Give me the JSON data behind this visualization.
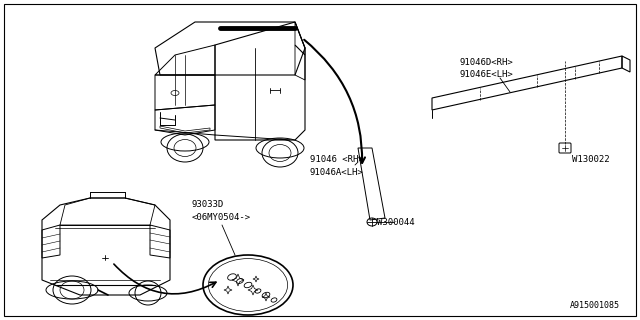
{
  "bg_color": "#ffffff",
  "line_color": "#000000",
  "text_color": "#000000",
  "diagram_id": "A915001085",
  "figsize": [
    6.4,
    3.2
  ],
  "dpi": 100,
  "border": true,
  "labels": {
    "91046D_RH": "91046D<RH>",
    "91046E_LH": "91046E<LH>",
    "91046_RH": "91046 <RH>",
    "91046A_LH": "91046A<LH>",
    "W130022": "W130022",
    "W300044": "W300044",
    "93033D": "93033D",
    "model": "<06MY0504->"
  }
}
